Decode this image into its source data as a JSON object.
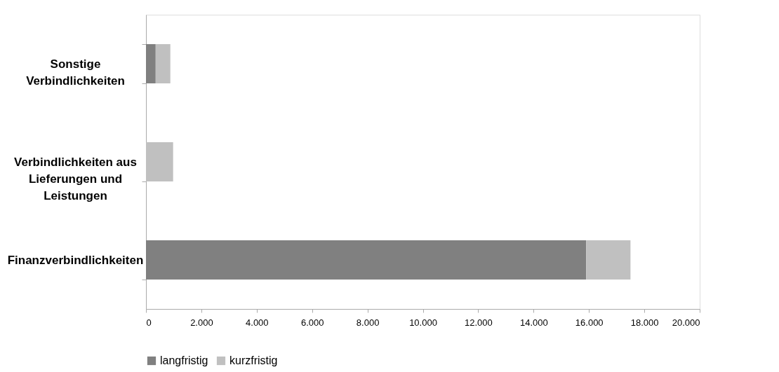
{
  "chart_data": {
    "type": "bar",
    "orientation": "horizontal",
    "stacked": true,
    "categories": [
      "Sonstige Verbindlichkeiten",
      "Verbindlichkeiten aus Lieferungen und Leistungen",
      "Finanzverbindlichkeiten"
    ],
    "series": [
      {
        "name": "langfristig",
        "color": "#808080",
        "values": [
          350,
          0,
          15900
        ]
      },
      {
        "name": "kurzfristig",
        "color": "#c0c0c0",
        "values": [
          530,
          980,
          1600
        ]
      }
    ],
    "xlim": [
      0,
      20000
    ],
    "xticks": [
      {
        "value": 0,
        "label": "0"
      },
      {
        "value": 2000,
        "label": "2.000"
      },
      {
        "value": 4000,
        "label": "4.000"
      },
      {
        "value": 6000,
        "label": "6.000"
      },
      {
        "value": 8000,
        "label": "8.000"
      },
      {
        "value": 10000,
        "label": "10.000"
      },
      {
        "value": 12000,
        "label": "12.000"
      },
      {
        "value": 14000,
        "label": "14.000"
      },
      {
        "value": 16000,
        "label": "16.000"
      },
      {
        "value": 18000,
        "label": "18.000"
      },
      {
        "value": 20000,
        "label": "20.000"
      }
    ],
    "grid": false,
    "legend": "bottom"
  }
}
